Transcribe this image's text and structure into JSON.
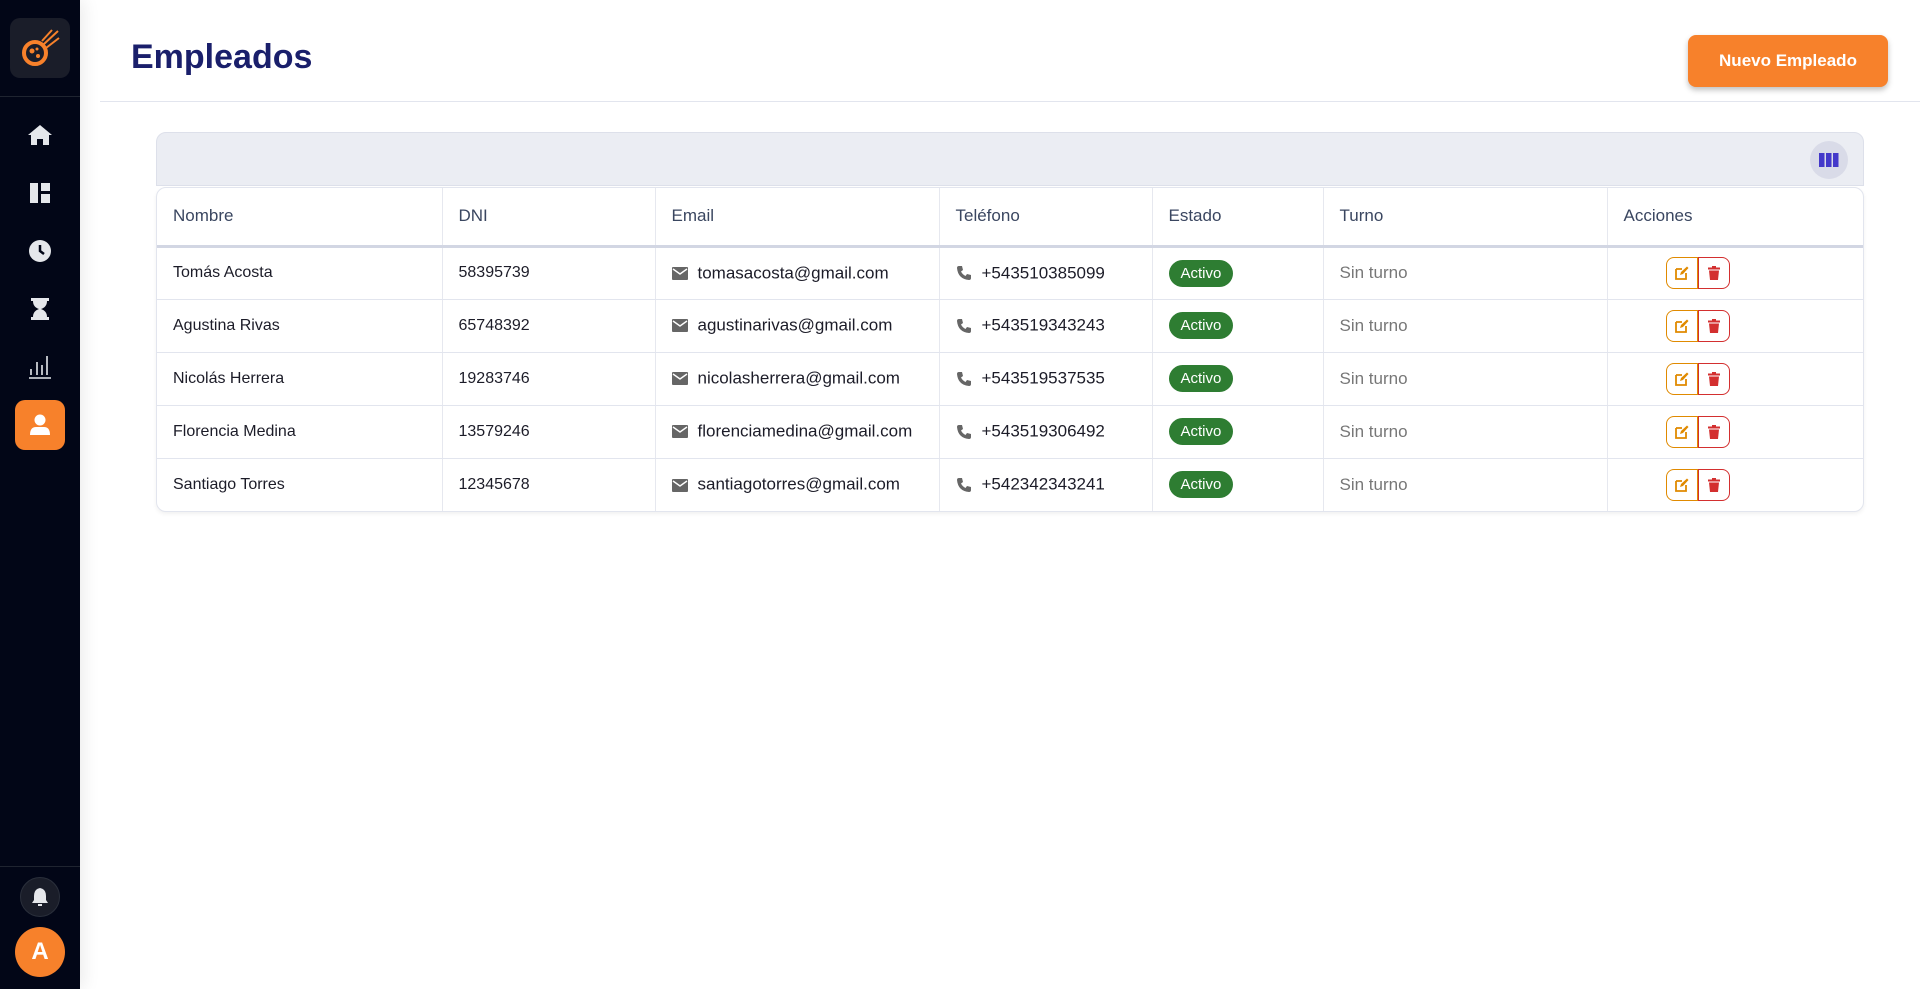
{
  "header": {
    "title": "Empleados",
    "new_button": "Nuevo Empleado"
  },
  "sidebar": {
    "items": [
      {
        "name": "home",
        "icon": "home-icon"
      },
      {
        "name": "dashboard",
        "icon": "dashboard-icon"
      },
      {
        "name": "clock",
        "icon": "clock-icon"
      },
      {
        "name": "hourglass",
        "icon": "hourglass-icon"
      },
      {
        "name": "reports",
        "icon": "bar-chart-icon"
      },
      {
        "name": "employees",
        "icon": "user-icon",
        "active": true
      }
    ],
    "avatar_letter": "A"
  },
  "colors": {
    "accent": "#f7812b",
    "title": "#1a1f6b",
    "active_badge": "#2e7d32",
    "sidebar": "#020617",
    "edit": "#e08a00",
    "delete": "#d32f2f"
  },
  "table": {
    "columns": [
      "Nombre",
      "DNI",
      "Email",
      "Teléfono",
      "Estado",
      "Turno",
      "Acciones"
    ],
    "rows": [
      {
        "nombre": "Tomás Acosta",
        "dni": "58395739",
        "email": "tomasacosta@gmail.com",
        "telefono": "+543510385099",
        "estado": "Activo",
        "turno": "Sin turno"
      },
      {
        "nombre": "Agustina Rivas",
        "dni": "65748392",
        "email": "agustinarivas@gmail.com",
        "telefono": "+543519343243",
        "estado": "Activo",
        "turno": "Sin turno"
      },
      {
        "nombre": "Nicolás Herrera",
        "dni": "19283746",
        "email": "nicolasherrera@gmail.com",
        "telefono": "+543519537535",
        "estado": "Activo",
        "turno": "Sin turno"
      },
      {
        "nombre": "Florencia Medina",
        "dni": "13579246",
        "email": "florenciamedina@gmail.com",
        "telefono": "+543519306492",
        "estado": "Activo",
        "turno": "Sin turno"
      },
      {
        "nombre": "Santiago Torres",
        "dni": "12345678",
        "email": "santiagotorres@gmail.com",
        "telefono": "+542342343241",
        "estado": "Activo",
        "turno": "Sin turno"
      }
    ]
  }
}
